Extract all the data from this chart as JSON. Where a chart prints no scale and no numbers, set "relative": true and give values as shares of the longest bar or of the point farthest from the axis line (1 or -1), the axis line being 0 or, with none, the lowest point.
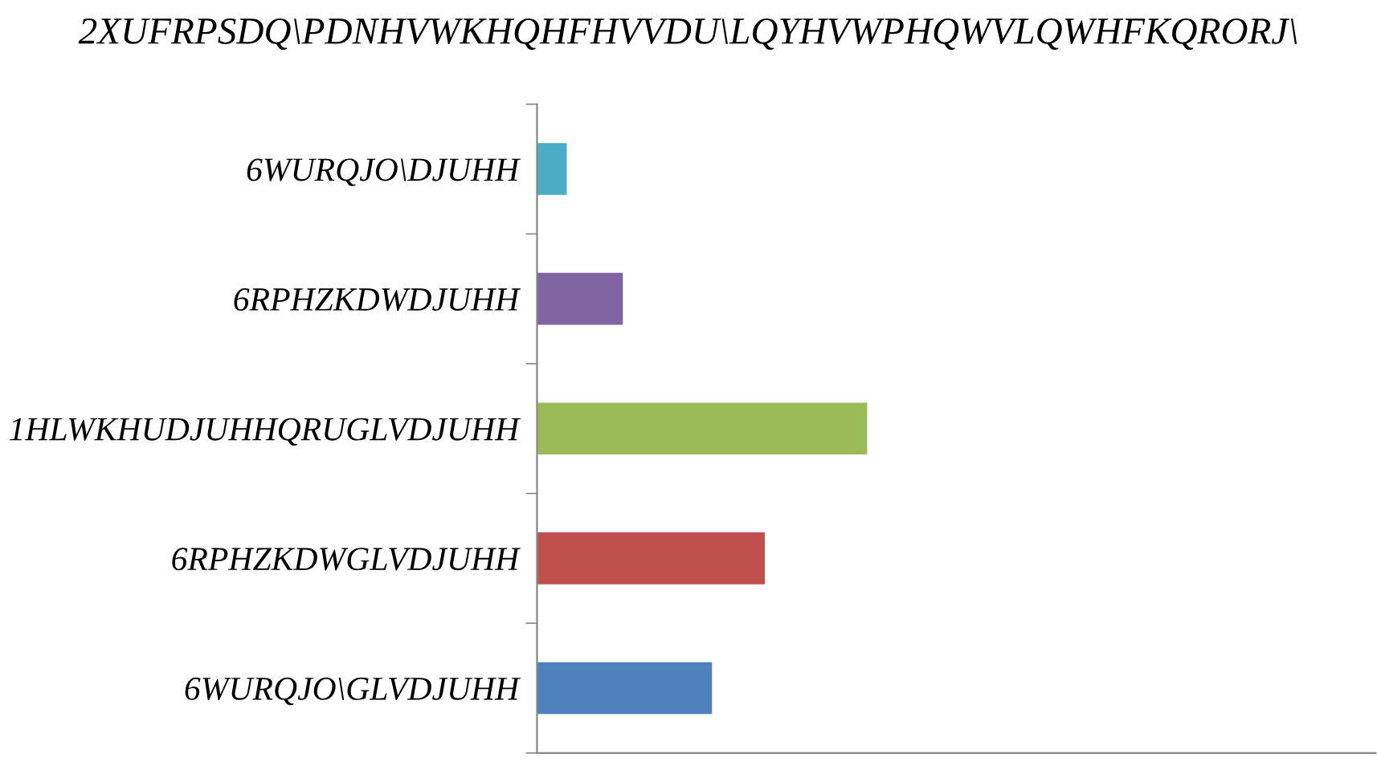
{
  "chart_data": {
    "type": "bar",
    "orientation": "horizontal",
    "relative": true,
    "title": "2XUFRPSDQ\\PDNHVWKHQHFHVVDU\\LQYHVWPHQWVLQWHFKQRORJ\\",
    "categories": [
      "6WURQJO\\DJUHH",
      "6RPHZKDWDJUHH",
      "1HLWKHUDJUHHQRUGLVDJUHH",
      "6RPHZKDWGLVDJUHH",
      "6WURQJO\\GLVDJUHH"
    ],
    "values": [
      0.09,
      0.26,
      1,
      0.69,
      0.53
    ],
    "colors": [
      "#4bacc6",
      "#8064a2",
      "#9bbb59",
      "#c0504d",
      "#4f81bd"
    ],
    "grid": false,
    "legend": false
  }
}
